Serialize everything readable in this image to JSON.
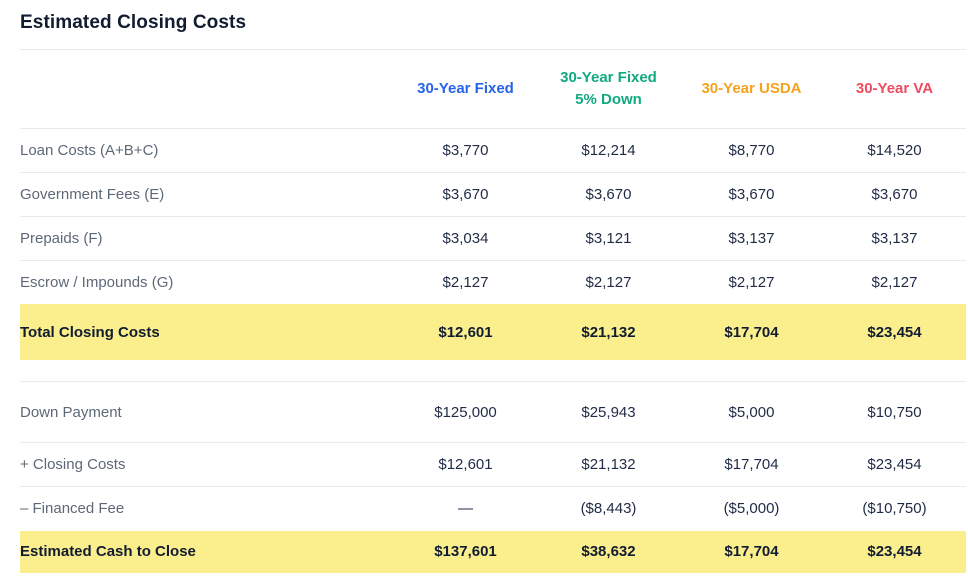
{
  "page": {
    "title": "Estimated Closing Costs"
  },
  "colors": {
    "highlight": "#faee8d",
    "col_fixed": "#2763e9",
    "col_fixed5": "#12a981",
    "col_usda": "#f6a21c",
    "col_va": "#ee4a62"
  },
  "columns": [
    {
      "label": "30-Year Fixed",
      "color": "#2763e9"
    },
    {
      "label": "30-Year Fixed\n5% Down",
      "color": "#12a981"
    },
    {
      "label": "30-Year USDA",
      "color": "#f6a21c"
    },
    {
      "label": "30-Year VA",
      "color": "#ee4a62"
    }
  ],
  "section1": {
    "rows": [
      {
        "label": "Loan Costs (A+B+C)",
        "values": [
          "$3,770",
          "$12,214",
          "$8,770",
          "$14,520"
        ]
      },
      {
        "label": "Government Fees (E)",
        "values": [
          "$3,670",
          "$3,670",
          "$3,670",
          "$3,670"
        ]
      },
      {
        "label": "Prepaids (F)",
        "values": [
          "$3,034",
          "$3,121",
          "$3,137",
          "$3,137"
        ]
      },
      {
        "label": "Escrow / Impounds (G)",
        "values": [
          "$2,127",
          "$2,127",
          "$2,127",
          "$2,127"
        ]
      }
    ],
    "total": {
      "label": "Total Closing Costs",
      "values": [
        "$12,601",
        "$21,132",
        "$17,704",
        "$23,454"
      ]
    }
  },
  "section2": {
    "rows": [
      {
        "label": "Down Payment",
        "values": [
          "$125,000",
          "$25,943",
          "$5,000",
          "$10,750"
        ]
      },
      {
        "label": "+ Closing Costs",
        "values": [
          "$12,601",
          "$21,132",
          "$17,704",
          "$23,454"
        ]
      },
      {
        "label": "– Financed Fee",
        "values": [
          "—",
          "($8,443)",
          "($5,000)",
          "($10,750)"
        ]
      }
    ],
    "total": {
      "label": "Estimated Cash to Close",
      "values": [
        "$137,601",
        "$38,632",
        "$17,704",
        "$23,454"
      ]
    }
  }
}
